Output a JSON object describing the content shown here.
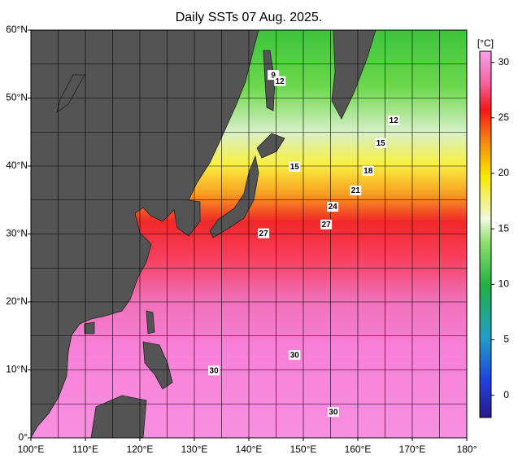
{
  "title": "Daily SSTs 07 Aug. 2025.",
  "map": {
    "lon_range": [
      100,
      180
    ],
    "lat_range": [
      0,
      60
    ],
    "lon_ticks": [
      {
        "value": 100,
        "label": "100°E"
      },
      {
        "value": 110,
        "label": "110°E"
      },
      {
        "value": 120,
        "label": "120°E"
      },
      {
        "value": 130,
        "label": "130°E"
      },
      {
        "value": 140,
        "label": "140°E"
      },
      {
        "value": 150,
        "label": "150°E"
      },
      {
        "value": 160,
        "label": "160°E"
      },
      {
        "value": 170,
        "label": "170°E"
      },
      {
        "value": 180,
        "label": "180°"
      }
    ],
    "lat_ticks": [
      {
        "value": 0,
        "label": "0°"
      },
      {
        "value": 10,
        "label": "10°N"
      },
      {
        "value": 20,
        "label": "20°N"
      },
      {
        "value": 30,
        "label": "30°N"
      },
      {
        "value": 40,
        "label": "40°N"
      },
      {
        "value": 50,
        "label": "50°N"
      },
      {
        "value": 60,
        "label": "60°N"
      }
    ],
    "lon_grid": [
      105,
      115,
      125,
      135,
      145,
      155,
      165,
      175
    ],
    "lat_grid": [
      5,
      15,
      25,
      35,
      45,
      55
    ],
    "contour_labels": [
      {
        "label": "9",
        "lon": 144.5,
        "lat": 53.4
      },
      {
        "label": "12",
        "lon": 145.7,
        "lat": 52.5
      },
      {
        "label": "12",
        "lon": 166.6,
        "lat": 46.7
      },
      {
        "label": "15",
        "lon": 164.2,
        "lat": 43.4
      },
      {
        "label": "15",
        "lon": 148.4,
        "lat": 39.9
      },
      {
        "label": "18",
        "lon": 161.9,
        "lat": 39.3
      },
      {
        "label": "21",
        "lon": 159.6,
        "lat": 36.4
      },
      {
        "label": "24",
        "lon": 155.4,
        "lat": 34.0
      },
      {
        "label": "27",
        "lon": 154.2,
        "lat": 31.4
      },
      {
        "label": "27",
        "lon": 142.7,
        "lat": 30.1
      },
      {
        "label": "30",
        "lon": 148.4,
        "lat": 12.2
      },
      {
        "label": "30",
        "lon": 133.6,
        "lat": 9.9
      },
      {
        "label": "30",
        "lon": 155.5,
        "lat": 3.8
      }
    ]
  },
  "colorbar": {
    "unit": "[°C]",
    "range": [
      -2,
      31
    ],
    "ticks": [
      0,
      5,
      10,
      15,
      20,
      25,
      30
    ]
  }
}
